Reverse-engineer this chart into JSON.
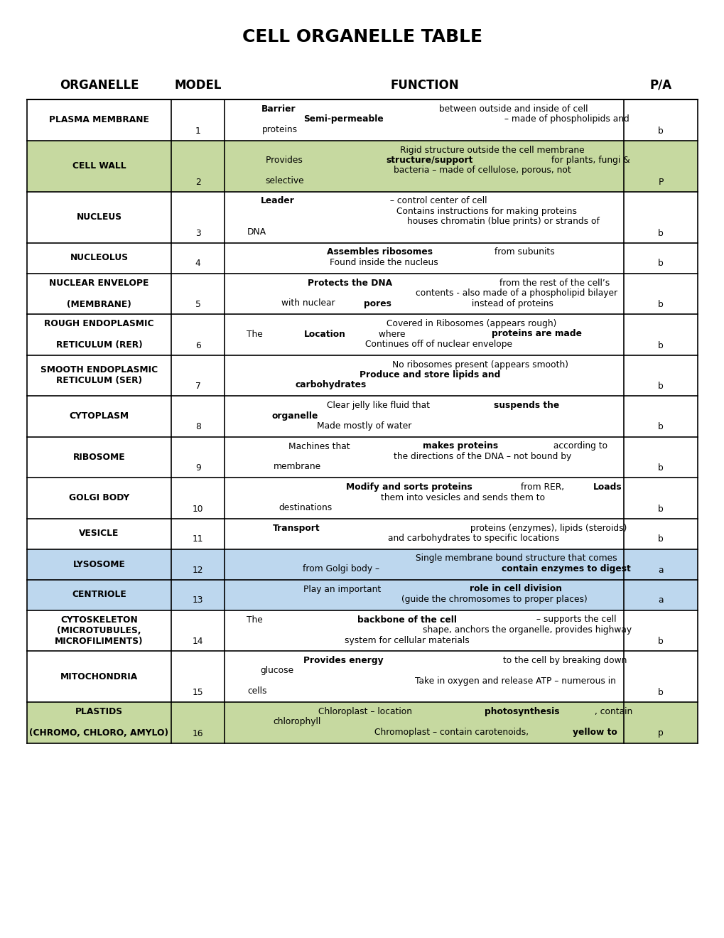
{
  "title": "CELL ORGANELLE TABLE",
  "title_fontsize": 18,
  "header": [
    "ORGANELLE",
    "MODEL",
    "FUNCTION",
    "P/A"
  ],
  "background_color": "#ffffff",
  "colors": {
    "white": "#ffffff",
    "green": "#c6d9a0",
    "blue": "#bdd7ee"
  },
  "rows": [
    {
      "organelle": "PLASMA MEMBRANE",
      "model": "1",
      "function_parts": [
        {
          "text": "Barrier",
          "bold": true
        },
        {
          "text": " between outside and inside of cell\n",
          "bold": false
        },
        {
          "text": "Semi-permeable",
          "bold": true
        },
        {
          "text": " – made of phospholipids and\nproteins",
          "bold": false
        }
      ],
      "pa": "b",
      "color": "white",
      "org_lines": 1,
      "func_lines": 3
    },
    {
      "organelle": "CELL WALL",
      "model": "2",
      "function_parts": [
        {
          "text": "Rigid structure outside the cell membrane\nProvides ",
          "bold": false
        },
        {
          "text": "structure/support",
          "bold": true
        },
        {
          "text": " for plants, fungi &\nbacteria – made of cellulose, porous, not\nselective",
          "bold": false
        }
      ],
      "pa": "P",
      "color": "green",
      "org_lines": 1,
      "func_lines": 4
    },
    {
      "organelle": "NUCLEUS",
      "model": "3",
      "function_parts": [
        {
          "text": "Leader",
          "bold": true
        },
        {
          "text": " – control center of cell\nContains instructions for making proteins\nhouses chromatin (blue prints) or strands of\nDNA",
          "bold": false
        }
      ],
      "pa": "b",
      "color": "white",
      "org_lines": 1,
      "func_lines": 4
    },
    {
      "organelle": "NUCLEOLUS",
      "model": "4",
      "function_parts": [
        {
          "text": "Assembles ribosomes",
          "bold": true
        },
        {
          "text": " from subunits\nFound inside the nucleus",
          "bold": false
        }
      ],
      "pa": "b",
      "color": "white",
      "org_lines": 1,
      "func_lines": 2
    },
    {
      "organelle": "NUCLEAR ENVELOPE\n\n(MEMBRANE)",
      "model": "5",
      "function_parts": [
        {
          "text": "Protects the DNA",
          "bold": true
        },
        {
          "text": " from the rest of the cell’s\ncontents - also made of a phospholipid bilayer\nwith nuclear ",
          "bold": false
        },
        {
          "text": "pores",
          "bold": true
        },
        {
          "text": " instead of proteins",
          "bold": false
        }
      ],
      "pa": "b",
      "color": "white",
      "org_lines": 3,
      "func_lines": 3
    },
    {
      "organelle": "ROUGH ENDOPLASMIC\n\nRETICULUM (RER)",
      "model": "6",
      "function_parts": [
        {
          "text": "Covered in Ribosomes (appears rough)\nThe ",
          "bold": false
        },
        {
          "text": "Location",
          "bold": true
        },
        {
          "text": " where ",
          "bold": false
        },
        {
          "text": "proteins are made",
          "bold": true
        },
        {
          "text": "\nContinues off of nuclear envelope",
          "bold": false
        }
      ],
      "pa": "b",
      "color": "white",
      "org_lines": 3,
      "func_lines": 3
    },
    {
      "organelle": "SMOOTH ENDOPLASMIC\nRETICULUM (SER)",
      "model": "7",
      "function_parts": [
        {
          "text": "No ribosomes present (appears smooth)\n",
          "bold": false
        },
        {
          "text": "Produce and store lipids and\ncarbohydrates",
          "bold": true
        }
      ],
      "pa": "b",
      "color": "white",
      "org_lines": 2,
      "func_lines": 3
    },
    {
      "organelle": "CYTOPLASM",
      "model": "8",
      "function_parts": [
        {
          "text": "Clear jelly like fluid that ",
          "bold": false
        },
        {
          "text": "suspends the\norganelle",
          "bold": true
        },
        {
          "text": "\nMade mostly of water",
          "bold": false
        }
      ],
      "pa": "b",
      "color": "white",
      "org_lines": 1,
      "func_lines": 3
    },
    {
      "organelle": "RIBOSOME",
      "model": "9",
      "function_parts": [
        {
          "text": "Machines that ",
          "bold": false
        },
        {
          "text": "makes proteins",
          "bold": true
        },
        {
          "text": " according to\nthe directions of the DNA – not bound by\nmembrane",
          "bold": false
        }
      ],
      "pa": "b",
      "color": "white",
      "org_lines": 1,
      "func_lines": 3
    },
    {
      "organelle": "GOLGI BODY",
      "model": "10",
      "function_parts": [
        {
          "text": "Modify and sorts proteins",
          "bold": true
        },
        {
          "text": " from RER, ",
          "bold": false
        },
        {
          "text": "Loads",
          "bold": true
        },
        {
          "text": "\nthem into vesicles and sends them to\ndestinations",
          "bold": false
        }
      ],
      "pa": "b",
      "color": "white",
      "org_lines": 1,
      "func_lines": 3
    },
    {
      "organelle": "VESICLE",
      "model": "11",
      "function_parts": [
        {
          "text": "Transport",
          "bold": true
        },
        {
          "text": " proteins (enzymes), lipids (steroids)\nand carbohydrates to specific locations",
          "bold": false
        }
      ],
      "pa": "b",
      "color": "white",
      "org_lines": 1,
      "func_lines": 2
    },
    {
      "organelle": "LYSOSOME",
      "model": "12",
      "function_parts": [
        {
          "text": "Single membrane bound structure that comes\nfrom Golgi body – ",
          "bold": false
        },
        {
          "text": "contain enzymes to digest",
          "bold": true
        }
      ],
      "pa": "a",
      "color": "blue",
      "org_lines": 1,
      "func_lines": 2
    },
    {
      "organelle": "CENTRIOLE",
      "model": "13",
      "function_parts": [
        {
          "text": "Play an important ",
          "bold": false
        },
        {
          "text": "role in cell division",
          "bold": true
        },
        {
          "text": "\n(guide the chromosomes to proper places)",
          "bold": false
        }
      ],
      "pa": "a",
      "color": "blue",
      "org_lines": 1,
      "func_lines": 2
    },
    {
      "organelle": "CYTOSKELETON\n(MICROTUBULES,\nMICROFILIMENTS)",
      "model": "14",
      "function_parts": [
        {
          "text": "The ",
          "bold": false
        },
        {
          "text": "backbone of the cell",
          "bold": true
        },
        {
          "text": " – supports the cell\nshape, anchors the organelle, provides highway\nsystem for cellular materials",
          "bold": false
        }
      ],
      "pa": "b",
      "color": "white",
      "org_lines": 3,
      "func_lines": 3
    },
    {
      "organelle": "MITOCHONDRIA",
      "model": "15",
      "function_parts": [
        {
          "text": "Provides energy",
          "bold": true
        },
        {
          "text": " to the cell by breaking down\nglucose\nTake in oxygen and release ATP – numerous in\ncells",
          "bold": false
        }
      ],
      "pa": "b",
      "color": "white",
      "org_lines": 1,
      "func_lines": 4
    },
    {
      "organelle": "PLASTIDS\n\n(CHROMO, CHLORO, AMYLO)",
      "model": "16",
      "function_parts": [
        {
          "text": "Chloroplast – location ",
          "bold": false
        },
        {
          "text": "photosynthesis",
          "bold": true
        },
        {
          "text": ", contain\nchlorophyll\nChromoplast – contain carotenoids, ",
          "bold": false
        },
        {
          "text": "yellow to",
          "bold": true
        }
      ],
      "pa": "p",
      "color": "green",
      "org_lines": 3,
      "func_lines": 3
    }
  ]
}
